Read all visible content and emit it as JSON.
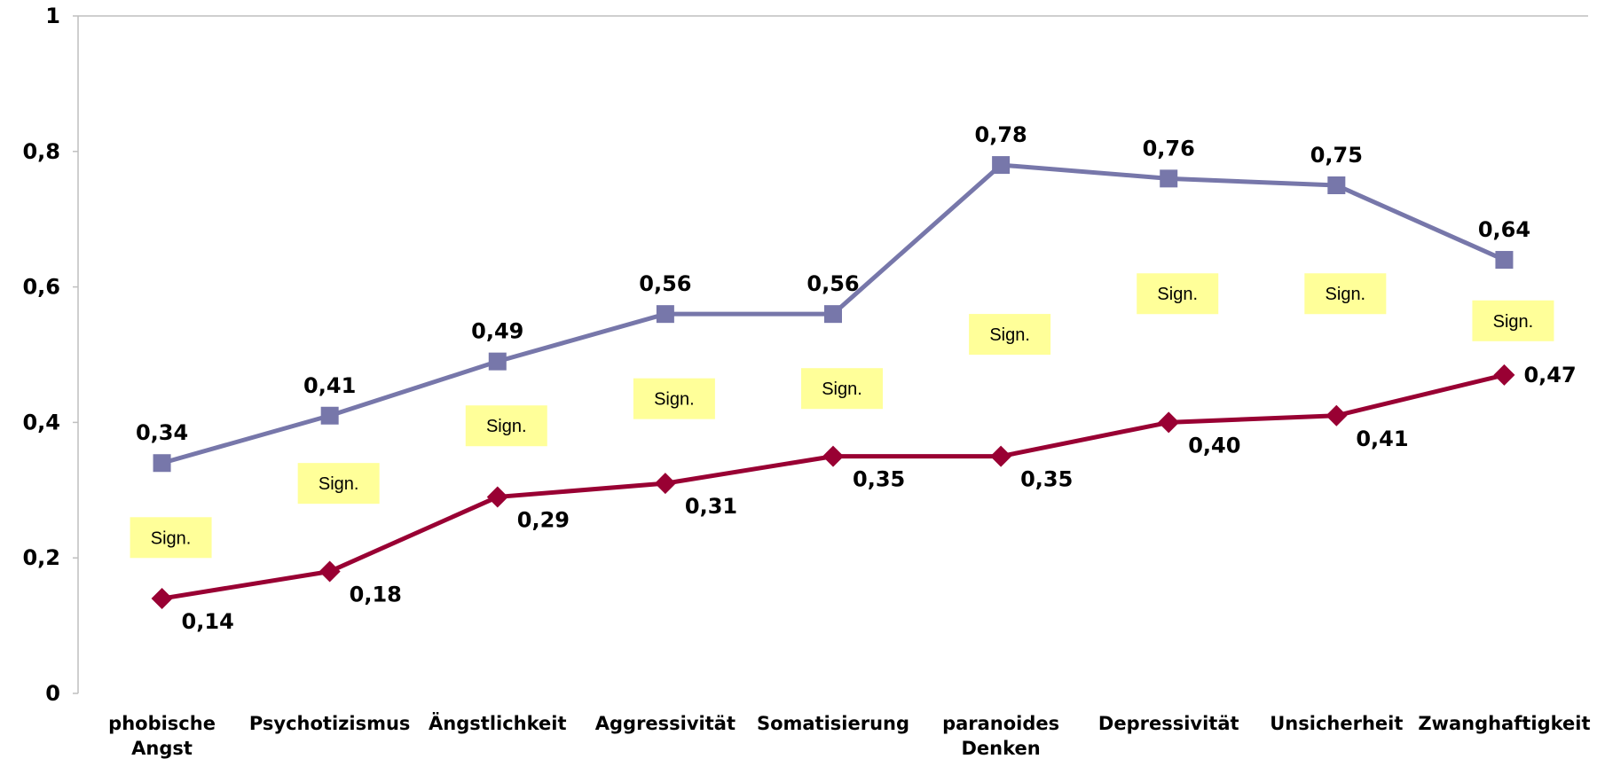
{
  "chart_data": {
    "type": "line",
    "categories": [
      [
        "phobische",
        "Angst"
      ],
      [
        "Psychotizismus"
      ],
      [
        "Ängstlichkeit"
      ],
      [
        "Aggressivität"
      ],
      [
        "Somatisierung"
      ],
      [
        "paranoides",
        "Denken"
      ],
      [
        "Depressivität"
      ],
      [
        "Unsicherheit"
      ],
      [
        "Zwanghaftigkeit"
      ]
    ],
    "y_ticks": [
      "0",
      "0,2",
      "0,4",
      "0,6",
      "0,8",
      "1"
    ],
    "ylim": [
      0,
      1
    ],
    "grid": false,
    "legend": "none",
    "series": [
      {
        "color": "#7777aa",
        "marker": "square",
        "values": [
          0.34,
          0.41,
          0.49,
          0.56,
          0.56,
          0.78,
          0.76,
          0.75,
          0.64
        ],
        "labels": [
          "0,34",
          "0,41",
          "0,49",
          "0,56",
          "0,56",
          "0,78",
          "0,76",
          "0,75",
          "0,64"
        ]
      },
      {
        "color": "#990033",
        "marker": "diamond",
        "values": [
          0.14,
          0.18,
          0.29,
          0.31,
          0.35,
          0.35,
          0.4,
          0.41,
          0.47
        ],
        "labels": [
          "0,14",
          "0,18",
          "0,29",
          "0,31",
          "0,35",
          "0,35",
          "0,40",
          "0,41",
          "0,47"
        ]
      }
    ],
    "annotations": {
      "text": "Sign.",
      "box_color": "#ffff99",
      "values": [
        0.23,
        0.31,
        0.395,
        0.435,
        0.45,
        0.53,
        0.59,
        0.59,
        0.55
      ]
    }
  }
}
